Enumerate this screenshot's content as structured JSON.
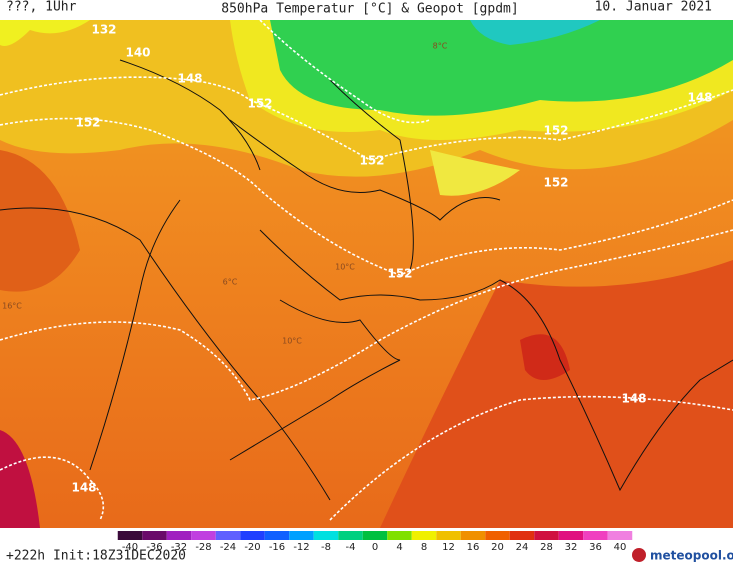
{
  "header": {
    "left": "???, 1Uhr",
    "title": "850hPa Temperatur [°C] & Geopot [gpdm]",
    "date": "10. Januar 2021"
  },
  "map": {
    "contour_labels": [
      "140",
      "148",
      "152",
      "152",
      "152",
      "152",
      "152",
      "152",
      "148",
      "148",
      "148",
      "132"
    ],
    "temperature_labels": [
      "8°C",
      "10°C",
      "10°C",
      "16°C",
      "6°C"
    ]
  },
  "colorbar": {
    "ticks": [
      -40,
      -36,
      -32,
      -28,
      -24,
      -20,
      -16,
      -12,
      -8,
      -4,
      0,
      4,
      8,
      12,
      16,
      20,
      24,
      28,
      32,
      36,
      40
    ],
    "colors": [
      "#3a0a3a",
      "#6a0a6a",
      "#a020c0",
      "#c040e0",
      "#6060ff",
      "#2040ff",
      "#1060ff",
      "#00a0ff",
      "#00e0e0",
      "#00d080",
      "#00c040",
      "#80e000",
      "#f0f000",
      "#f0c000",
      "#f09000",
      "#f06000",
      "#e03010",
      "#d01040",
      "#e01080",
      "#f040c0",
      "#f080e0"
    ]
  },
  "footer": {
    "run": "+222h Init:18Z31DEC2020",
    "brand": "meteopool.org"
  }
}
